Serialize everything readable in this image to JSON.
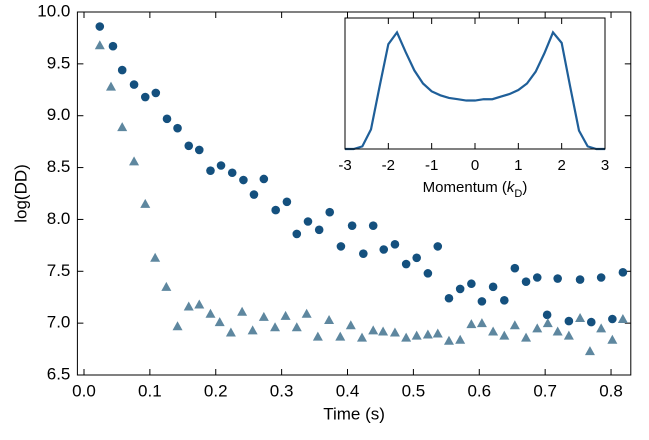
{
  "chart_data": [
    {
      "type": "scatter",
      "xlabel": "Time (s)",
      "ylabel": "log(DD)",
      "xlim": [
        -0.01,
        0.83
      ],
      "ylim": [
        6.5,
        10.0
      ],
      "xticks": [
        {
          "value": 0,
          "label": "0.0"
        },
        0.1,
        0.2,
        0.3,
        0.4,
        0.5,
        0.6,
        0.7,
        0.8
      ],
      "yticks": [
        6.5,
        {
          "value": 7,
          "label": "7.0"
        },
        7.5,
        {
          "value": 8,
          "label": "8.0"
        },
        8.5,
        {
          "value": 9,
          "label": "9.0"
        },
        9.5,
        {
          "value": 10,
          "label": "10.0"
        }
      ],
      "series": [
        {
          "marker": "o",
          "color": "#14507e",
          "x": [
            0.024,
            0.044,
            0.058,
            0.076,
            0.093,
            0.109,
            0.126,
            0.142,
            0.159,
            0.175,
            0.192,
            0.208,
            0.225,
            0.242,
            0.258,
            0.273,
            0.291,
            0.308,
            0.323,
            0.34,
            0.357,
            0.373,
            0.39,
            0.407,
            0.424,
            0.439,
            0.455,
            0.472,
            0.489,
            0.505,
            0.522,
            0.537,
            0.554,
            0.571,
            0.588,
            0.604,
            0.621,
            0.638,
            0.654,
            0.671,
            0.688,
            0.703,
            0.719,
            0.736,
            0.753,
            0.77,
            0.785,
            0.802,
            0.818
          ],
          "values": [
            9.86,
            9.67,
            9.44,
            9.3,
            9.18,
            9.22,
            8.97,
            8.88,
            8.71,
            8.67,
            8.47,
            8.52,
            8.45,
            8.38,
            8.24,
            8.39,
            8.09,
            8.17,
            7.86,
            7.98,
            7.9,
            8.07,
            7.74,
            7.94,
            7.67,
            7.94,
            7.71,
            7.76,
            7.57,
            7.63,
            7.48,
            7.74,
            7.24,
            7.33,
            7.38,
            7.21,
            7.35,
            7.22,
            7.53,
            7.4,
            7.44,
            7.08,
            7.43,
            7.02,
            7.42,
            7.01,
            7.44,
            7.04,
            7.49
          ]
        },
        {
          "marker": "^",
          "color": "#5e879f",
          "x": [
            0.024,
            0.041,
            0.058,
            0.076,
            0.093,
            0.108,
            0.125,
            0.142,
            0.159,
            0.175,
            0.192,
            0.206,
            0.223,
            0.24,
            0.256,
            0.273,
            0.29,
            0.306,
            0.323,
            0.338,
            0.355,
            0.372,
            0.389,
            0.405,
            0.422,
            0.439,
            0.454,
            0.472,
            0.489,
            0.505,
            0.522,
            0.537,
            0.554,
            0.571,
            0.588,
            0.604,
            0.621,
            0.638,
            0.654,
            0.671,
            0.688,
            0.704,
            0.719,
            0.736,
            0.753,
            0.768,
            0.785,
            0.802,
            0.818
          ],
          "values": [
            9.68,
            9.28,
            8.89,
            8.56,
            8.15,
            7.63,
            7.35,
            6.97,
            7.16,
            7.18,
            7.09,
            7.01,
            6.91,
            7.11,
            6.93,
            7.06,
            6.96,
            7.07,
            6.96,
            7.09,
            6.87,
            7.03,
            6.87,
            6.98,
            6.86,
            6.93,
            6.92,
            6.91,
            6.86,
            6.88,
            6.89,
            6.9,
            6.83,
            6.84,
            6.99,
            7.0,
            6.92,
            6.88,
            6.98,
            6.86,
            6.95,
            7.0,
            6.92,
            6.88,
            7.05,
            6.73,
            6.95,
            6.84,
            7.04
          ]
        }
      ]
    },
    {
      "type": "line",
      "xlabel_parts": [
        "Momentum (",
        "k",
        "D",
        ")"
      ],
      "xlim": [
        -3,
        3
      ],
      "ylim": [
        0,
        1
      ],
      "xticks": [
        -3,
        -2,
        -1,
        0,
        1,
        2,
        3
      ],
      "series": [
        {
          "color": "#1f5f99",
          "x": [
            -3,
            -2.8,
            -2.6,
            -2.4,
            -2.2,
            -2,
            -1.8,
            -1.6,
            -1.4,
            -1.2,
            -1,
            -0.8,
            -0.6,
            -0.4,
            -0.2,
            0,
            0.2,
            0.4,
            0.6,
            0.8,
            1,
            1.2,
            1.4,
            1.6,
            1.8,
            2,
            2.2,
            2.4,
            2.6,
            2.8,
            3
          ],
          "values": [
            0,
            0,
            0.02,
            0.15,
            0.48,
            0.8,
            0.89,
            0.74,
            0.6,
            0.5,
            0.44,
            0.41,
            0.39,
            0.38,
            0.37,
            0.37,
            0.38,
            0.38,
            0.4,
            0.42,
            0.45,
            0.5,
            0.59,
            0.73,
            0.89,
            0.81,
            0.47,
            0.14,
            0.02,
            0,
            0
          ]
        }
      ]
    }
  ]
}
